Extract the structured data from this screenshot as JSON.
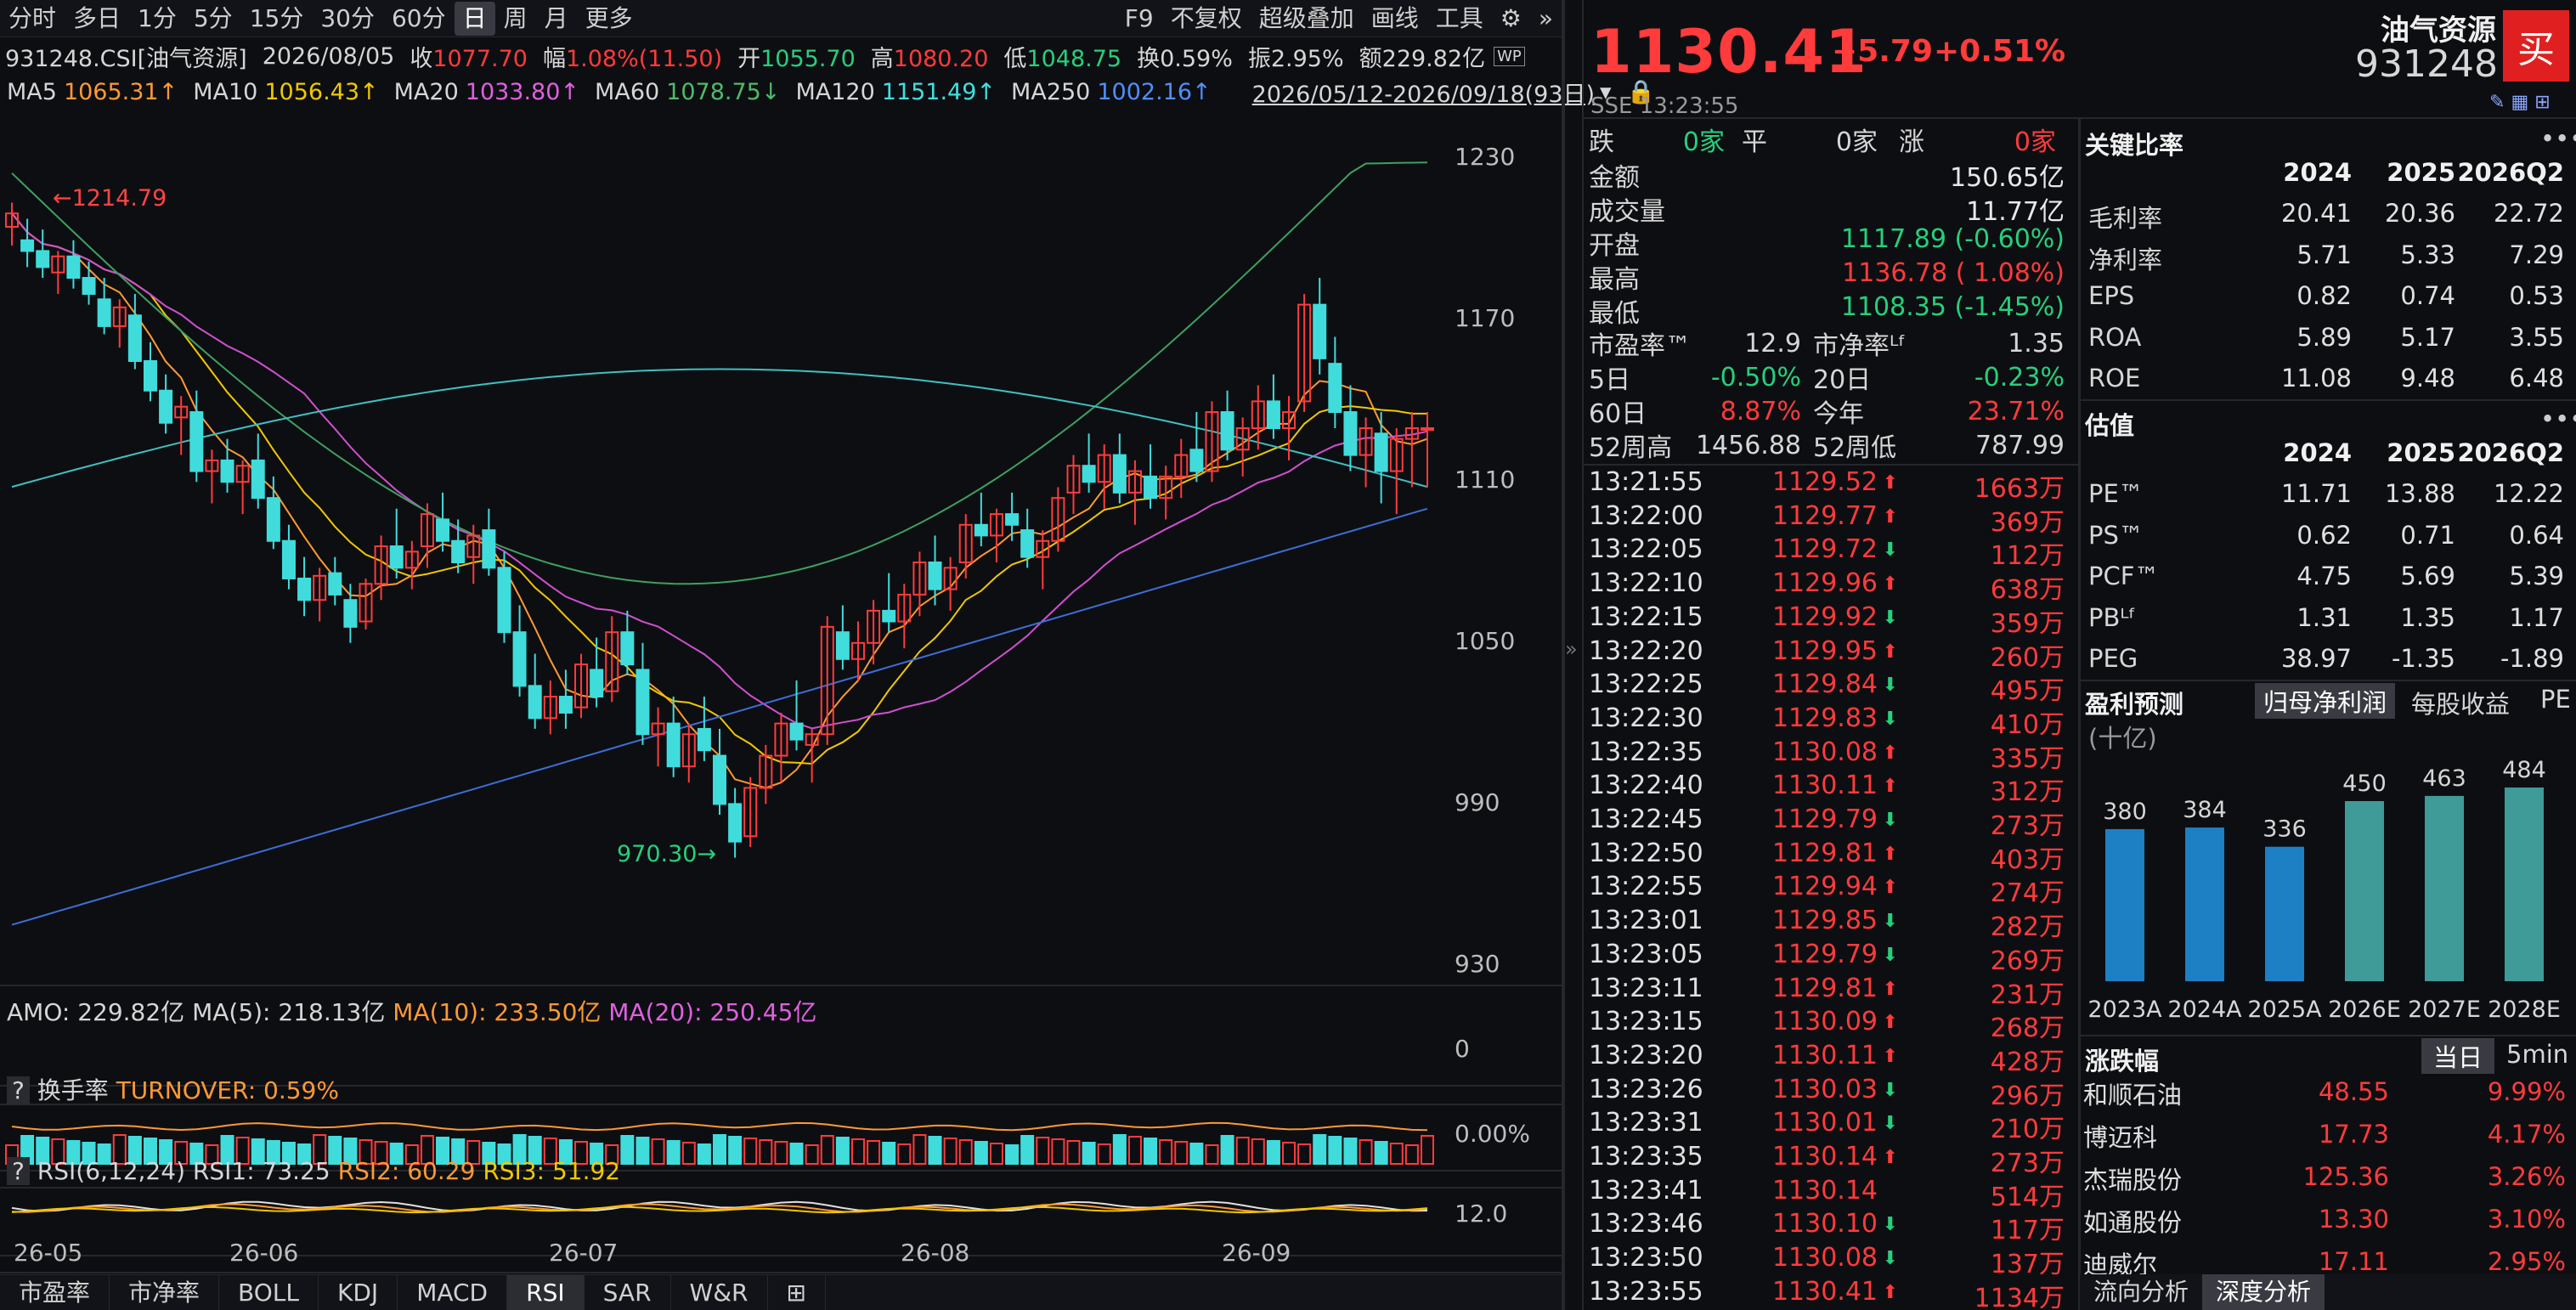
{
  "toolbar": {
    "periods": [
      "分时",
      "多日",
      "1分",
      "5分",
      "15分",
      "30分",
      "60分",
      "日",
      "周",
      "月",
      "更多"
    ],
    "active_period": "日",
    "right_items": [
      "F9",
      "不复权",
      "超级叠加",
      "画线",
      "工具"
    ]
  },
  "quote_bar": {
    "symbol": "931248.CSI[油气资源]",
    "date": "2026/08/05",
    "close_label": "收",
    "close": "1077.70",
    "change_label": "幅",
    "change": "1.08%(11.50)",
    "open_label": "开",
    "open": "1055.70",
    "high_label": "高",
    "high": "1080.20",
    "low_label": "低",
    "low": "1048.75",
    "turnover_label": "换",
    "turnover": "0.59%",
    "amplitude_label": "振",
    "amplitude": "2.95%",
    "amount_label": "额",
    "amount": "229.82亿"
  },
  "ma_bar": {
    "ma5": "MA5",
    "ma5_val": "1065.31↑",
    "ma10": "MA10",
    "ma10_val": "1056.43↑",
    "ma20": "MA20",
    "ma20_val": "1033.80↑",
    "ma60": "MA60",
    "ma60_val": "1078.75↓",
    "ma120": "MA120",
    "ma120_val": "1151.49↑",
    "ma250": "MA250",
    "ma250_val": "1002.16↑",
    "range": "2026/05/12-2026/09/18(93日)"
  },
  "price_axis": [
    "1230",
    "1170",
    "1110",
    "1050",
    "990",
    "930"
  ],
  "annotations": {
    "high": "1214.79",
    "low": "970.30"
  },
  "volume_bar": {
    "amo": "AMO: 229.82亿",
    "ma5": "MA(5): 218.13亿",
    "ma10": "MA(10): 233.50亿",
    "ma20": "MA(20): 250.45亿",
    "axis": "0"
  },
  "turnover_bar": {
    "q": "?",
    "title": "换手率",
    "label": "TURNOVER: 0.59%",
    "axis": "0.00%"
  },
  "rsi_bar": {
    "q": "?",
    "title": "RSI(6,12,24)",
    "rsi1": "RSI1: 73.25",
    "rsi2": "RSI2: 60.29",
    "rsi3": "RSI3: 51.92",
    "axis": "12.0"
  },
  "date_axis": [
    "26-05",
    "26-06",
    "26-07",
    "26-08",
    "26-09"
  ],
  "bottom_tabs": [
    "市盈率",
    "市净率",
    "BOLL",
    "KDJ",
    "MACD",
    "RSI",
    "SAR",
    "W&R"
  ],
  "active_tab": "RSI",
  "header": {
    "price": "1130.41",
    "change": "+5.79",
    "change_pct": "+0.51%",
    "exchange": "SSE",
    "time": "13:23:55",
    "name": "油气资源",
    "code": "931248",
    "buy": "买"
  },
  "breadth": {
    "down_label": "跌",
    "down": "0家",
    "flat_label": "平",
    "flat": "0家",
    "up_label": "涨",
    "up": "0家"
  },
  "stats": [
    {
      "label": "金额",
      "value": "150.65亿",
      "color": "#e8e8e8"
    },
    {
      "label": "成交量",
      "value": "11.77亿",
      "color": "#e8e8e8"
    },
    {
      "label": "开盘",
      "value": "1117.89 (-0.60%)",
      "color": "#26d07c"
    },
    {
      "label": "最高",
      "value": "1136.78 ( 1.08%)",
      "color": "#ff3b3b"
    },
    {
      "label": "最低",
      "value": "1108.35 (-1.45%)",
      "color": "#26d07c"
    }
  ],
  "valuation": {
    "pe_label": "市盈率™",
    "pe": "12.9",
    "pb_label": "市净率ᴸᶠ",
    "pb": "1.35",
    "d5_label": "5日",
    "d5": "-0.50%",
    "d20_label": "20日",
    "d20": "-0.23%",
    "d60_label": "60日",
    "d60": "8.87%",
    "ytd_label": "今年",
    "ytd": "23.71%",
    "h52_label": "52周高",
    "h52": "1456.88",
    "l52_label": "52周低",
    "l52": "787.99"
  },
  "ticks": [
    {
      "t": "13:21:55",
      "p": "1129.52",
      "d": "up",
      "v": "1663万"
    },
    {
      "t": "13:22:00",
      "p": "1129.77",
      "d": "up",
      "v": "369万"
    },
    {
      "t": "13:22:05",
      "p": "1129.72",
      "d": "down",
      "v": "112万"
    },
    {
      "t": "13:22:10",
      "p": "1129.96",
      "d": "up",
      "v": "638万"
    },
    {
      "t": "13:22:15",
      "p": "1129.92",
      "d": "down",
      "v": "359万"
    },
    {
      "t": "13:22:20",
      "p": "1129.95",
      "d": "up",
      "v": "260万"
    },
    {
      "t": "13:22:25",
      "p": "1129.84",
      "d": "down",
      "v": "495万"
    },
    {
      "t": "13:22:30",
      "p": "1129.83",
      "d": "down",
      "v": "410万"
    },
    {
      "t": "13:22:35",
      "p": "1130.08",
      "d": "up",
      "v": "335万"
    },
    {
      "t": "13:22:40",
      "p": "1130.11",
      "d": "up",
      "v": "312万"
    },
    {
      "t": "13:22:45",
      "p": "1129.79",
      "d": "down",
      "v": "273万"
    },
    {
      "t": "13:22:50",
      "p": "1129.81",
      "d": "up",
      "v": "403万"
    },
    {
      "t": "13:22:55",
      "p": "1129.94",
      "d": "up",
      "v": "274万"
    },
    {
      "t": "13:23:01",
      "p": "1129.85",
      "d": "down",
      "v": "282万"
    },
    {
      "t": "13:23:05",
      "p": "1129.79",
      "d": "down",
      "v": "269万"
    },
    {
      "t": "13:23:11",
      "p": "1129.81",
      "d": "up",
      "v": "231万"
    },
    {
      "t": "13:23:15",
      "p": "1130.09",
      "d": "up",
      "v": "268万"
    },
    {
      "t": "13:23:20",
      "p": "1130.11",
      "d": "up",
      "v": "428万"
    },
    {
      "t": "13:23:26",
      "p": "1130.03",
      "d": "down",
      "v": "296万"
    },
    {
      "t": "13:23:31",
      "p": "1130.01",
      "d": "down",
      "v": "210万"
    },
    {
      "t": "13:23:35",
      "p": "1130.14",
      "d": "up",
      "v": "273万"
    },
    {
      "t": "13:23:41",
      "p": "1130.14",
      "d": "none",
      "v": "514万"
    },
    {
      "t": "13:23:46",
      "p": "1130.10",
      "d": "down",
      "v": "117万"
    },
    {
      "t": "13:23:50",
      "p": "1130.08",
      "d": "down",
      "v": "137万"
    },
    {
      "t": "13:23:55",
      "p": "1130.41",
      "d": "up",
      "v": "1134万"
    }
  ],
  "key_ratios": {
    "title": "关键比率",
    "cols": [
      "2024",
      "2025",
      "2026Q2"
    ],
    "rows": [
      {
        "name": "毛利率",
        "vals": [
          "20.41",
          "20.36",
          "22.72"
        ]
      },
      {
        "name": "净利率",
        "vals": [
          "5.71",
          "5.33",
          "7.29"
        ]
      },
      {
        "name": "EPS",
        "vals": [
          "0.82",
          "0.74",
          "0.53"
        ]
      },
      {
        "name": "ROA",
        "vals": [
          "5.89",
          "5.17",
          "3.55"
        ]
      },
      {
        "name": "ROE",
        "vals": [
          "11.08",
          "9.48",
          "6.48"
        ]
      }
    ]
  },
  "valuation_table": {
    "title": "估值",
    "cols": [
      "2024",
      "2025",
      "2026Q2"
    ],
    "rows": [
      {
        "name": "PE™",
        "vals": [
          "11.71",
          "13.88",
          "12.22"
        ]
      },
      {
        "name": "PS™",
        "vals": [
          "0.62",
          "0.71",
          "0.64"
        ]
      },
      {
        "name": "PCF™",
        "vals": [
          "4.75",
          "5.69",
          "5.39"
        ]
      },
      {
        "name": "PBᴸᶠ",
        "vals": [
          "1.31",
          "1.35",
          "1.17"
        ]
      },
      {
        "name": "PEG",
        "vals": [
          "38.97",
          "-1.35",
          "-1.89"
        ]
      }
    ]
  },
  "forecast": {
    "title": "盈利预测",
    "tab1": "归母净利润",
    "tab2": "每股收益",
    "tab3": "PE",
    "unit": "(十亿)"
  },
  "chart_data": {
    "type": "bar",
    "categories": [
      "2023A",
      "2024A",
      "2025A",
      "2026E",
      "2027E",
      "2028E"
    ],
    "values": [
      380,
      384,
      336,
      450,
      463,
      484
    ],
    "ylim": [
      0,
      520
    ]
  },
  "movers": {
    "title": "涨跌幅",
    "tab1": "当日",
    "tab2": "5min",
    "rows": [
      {
        "name": "和顺石油",
        "price": "48.55",
        "pct": "9.99%"
      },
      {
        "name": "博迈科",
        "price": "17.73",
        "pct": "4.17%"
      },
      {
        "name": "杰瑞股份",
        "price": "125.36",
        "pct": "3.26%"
      },
      {
        "name": "如通股份",
        "price": "13.30",
        "pct": "3.10%"
      },
      {
        "name": "迪威尔",
        "price": "17.11",
        "pct": "2.95%"
      }
    ]
  },
  "bottom_right_tabs": [
    "流向分析",
    "深度分析"
  ],
  "candles": [
    [
      1205,
      1214,
      1198,
      1210
    ],
    [
      1200,
      1208,
      1190,
      1196
    ],
    [
      1196,
      1204,
      1186,
      1190
    ],
    [
      1188,
      1196,
      1180,
      1194
    ],
    [
      1194,
      1200,
      1182,
      1186
    ],
    [
      1186,
      1192,
      1176,
      1180
    ],
    [
      1178,
      1186,
      1165,
      1168
    ],
    [
      1168,
      1178,
      1160,
      1175
    ],
    [
      1172,
      1180,
      1152,
      1155
    ],
    [
      1155,
      1162,
      1140,
      1144
    ],
    [
      1144,
      1150,
      1128,
      1132
    ],
    [
      1134,
      1142,
      1120,
      1138
    ],
    [
      1136,
      1144,
      1110,
      1114
    ],
    [
      1114,
      1122,
      1102,
      1118
    ],
    [
      1118,
      1126,
      1106,
      1110
    ],
    [
      1110,
      1118,
      1098,
      1116
    ],
    [
      1118,
      1128,
      1100,
      1104
    ],
    [
      1104,
      1112,
      1085,
      1088
    ],
    [
      1088,
      1094,
      1070,
      1074
    ],
    [
      1074,
      1082,
      1060,
      1066
    ],
    [
      1066,
      1078,
      1058,
      1075
    ],
    [
      1076,
      1082,
      1064,
      1068
    ],
    [
      1066,
      1072,
      1050,
      1056
    ],
    [
      1058,
      1074,
      1055,
      1072
    ],
    [
      1072,
      1090,
      1066,
      1086
    ],
    [
      1086,
      1100,
      1074,
      1078
    ],
    [
      1078,
      1088,
      1070,
      1084
    ],
    [
      1086,
      1102,
      1078,
      1098
    ],
    [
      1096,
      1106,
      1084,
      1088
    ],
    [
      1088,
      1096,
      1076,
      1080
    ],
    [
      1082,
      1094,
      1072,
      1090
    ],
    [
      1092,
      1100,
      1075,
      1078
    ],
    [
      1078,
      1084,
      1050,
      1054
    ],
    [
      1054,
      1064,
      1030,
      1034
    ],
    [
      1034,
      1046,
      1018,
      1022
    ],
    [
      1022,
      1036,
      1016,
      1030
    ],
    [
      1030,
      1040,
      1018,
      1024
    ],
    [
      1026,
      1046,
      1022,
      1042
    ],
    [
      1040,
      1052,
      1026,
      1030
    ],
    [
      1032,
      1060,
      1028,
      1054
    ],
    [
      1054,
      1062,
      1038,
      1042
    ],
    [
      1040,
      1050,
      1012,
      1016
    ],
    [
      1016,
      1026,
      1004,
      1020
    ],
    [
      1020,
      1030,
      1000,
      1004
    ],
    [
      1004,
      1020,
      998,
      1016
    ],
    [
      1018,
      1030,
      1006,
      1010
    ],
    [
      1008,
      1018,
      986,
      990
    ],
    [
      990,
      996,
      970,
      976
    ],
    [
      978,
      1000,
      974,
      996
    ],
    [
      996,
      1012,
      990,
      1008
    ],
    [
      1008,
      1024,
      998,
      1020
    ],
    [
      1020,
      1036,
      1010,
      1014
    ],
    [
      1012,
      1018,
      998,
      1016
    ],
    [
      1016,
      1060,
      1012,
      1056
    ],
    [
      1054,
      1064,
      1040,
      1044
    ],
    [
      1044,
      1058,
      1036,
      1050
    ],
    [
      1050,
      1066,
      1042,
      1062
    ],
    [
      1062,
      1076,
      1054,
      1058
    ],
    [
      1058,
      1072,
      1048,
      1068
    ],
    [
      1068,
      1084,
      1060,
      1080
    ],
    [
      1080,
      1090,
      1064,
      1070
    ],
    [
      1070,
      1082,
      1062,
      1078
    ],
    [
      1080,
      1098,
      1074,
      1094
    ],
    [
      1094,
      1106,
      1086,
      1090
    ],
    [
      1090,
      1100,
      1080,
      1098
    ],
    [
      1098,
      1106,
      1088,
      1094
    ],
    [
      1092,
      1100,
      1078,
      1082
    ],
    [
      1082,
      1092,
      1070,
      1088
    ],
    [
      1088,
      1108,
      1084,
      1104
    ],
    [
      1106,
      1120,
      1098,
      1116
    ],
    [
      1116,
      1128,
      1106,
      1110
    ],
    [
      1110,
      1124,
      1100,
      1120
    ],
    [
      1120,
      1128,
      1102,
      1106
    ],
    [
      1106,
      1118,
      1094,
      1114
    ],
    [
      1112,
      1124,
      1100,
      1104
    ],
    [
      1104,
      1116,
      1096,
      1112
    ],
    [
      1112,
      1126,
      1104,
      1120
    ],
    [
      1122,
      1136,
      1110,
      1114
    ],
    [
      1114,
      1140,
      1110,
      1136
    ],
    [
      1136,
      1144,
      1118,
      1122
    ],
    [
      1122,
      1134,
      1112,
      1130
    ],
    [
      1130,
      1146,
      1122,
      1140
    ],
    [
      1140,
      1150,
      1126,
      1130
    ],
    [
      1130,
      1142,
      1118,
      1136
    ],
    [
      1140,
      1180,
      1136,
      1176
    ],
    [
      1176,
      1186,
      1150,
      1156
    ],
    [
      1154,
      1164,
      1130,
      1136
    ],
    [
      1136,
      1146,
      1114,
      1120
    ],
    [
      1120,
      1134,
      1108,
      1130
    ],
    [
      1128,
      1136,
      1102,
      1114
    ],
    [
      1114,
      1130,
      1098,
      1126
    ],
    [
      1126,
      1136,
      1108,
      1130
    ],
    [
      1130,
      1136,
      1108,
      1130
    ]
  ]
}
